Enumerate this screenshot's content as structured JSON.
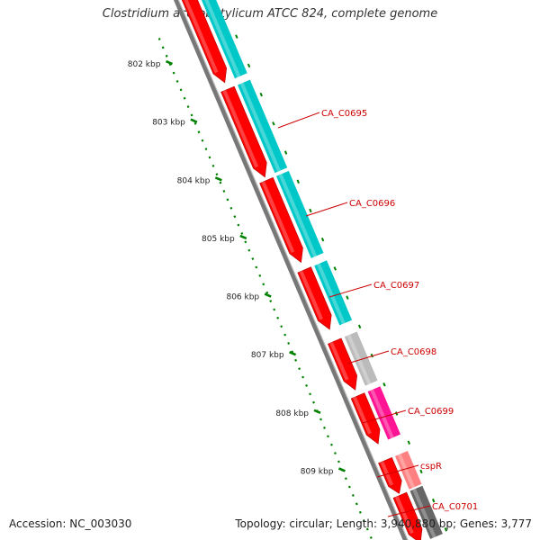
{
  "title": "Clostridium acetobutylicum ATCC 824, complete genome",
  "accession": "Accession: NC_003030",
  "topology": "Topology: circular; Length: 3,940,880 bp; Genes: 3,777",
  "ruler": {
    "ticks": [
      "802 kbp",
      "803 kbp",
      "804 kbp",
      "805 kbp",
      "806 kbp",
      "807 kbp",
      "808 kbp",
      "809 kbp"
    ]
  },
  "genes": [
    {
      "label": "CA_C0695"
    },
    {
      "label": "CA_C0696"
    },
    {
      "label": "CA_C0697"
    },
    {
      "label": "CA_C0698"
    },
    {
      "label": "CA_C0699"
    },
    {
      "label": "cspR"
    },
    {
      "label": "CA_C0701"
    }
  ],
  "colors": {
    "gene_red": "#ff0000",
    "cog_cyan": "#00c8c8",
    "cog_gray": "#bbbbbb",
    "cog_magenta": "#ff1493",
    "cog_pink": "#ff8080",
    "cog_dark_gray": "#666666",
    "ruler_green": "#008000",
    "backbone_gray": "#777777",
    "label_red": "#cc0000"
  }
}
